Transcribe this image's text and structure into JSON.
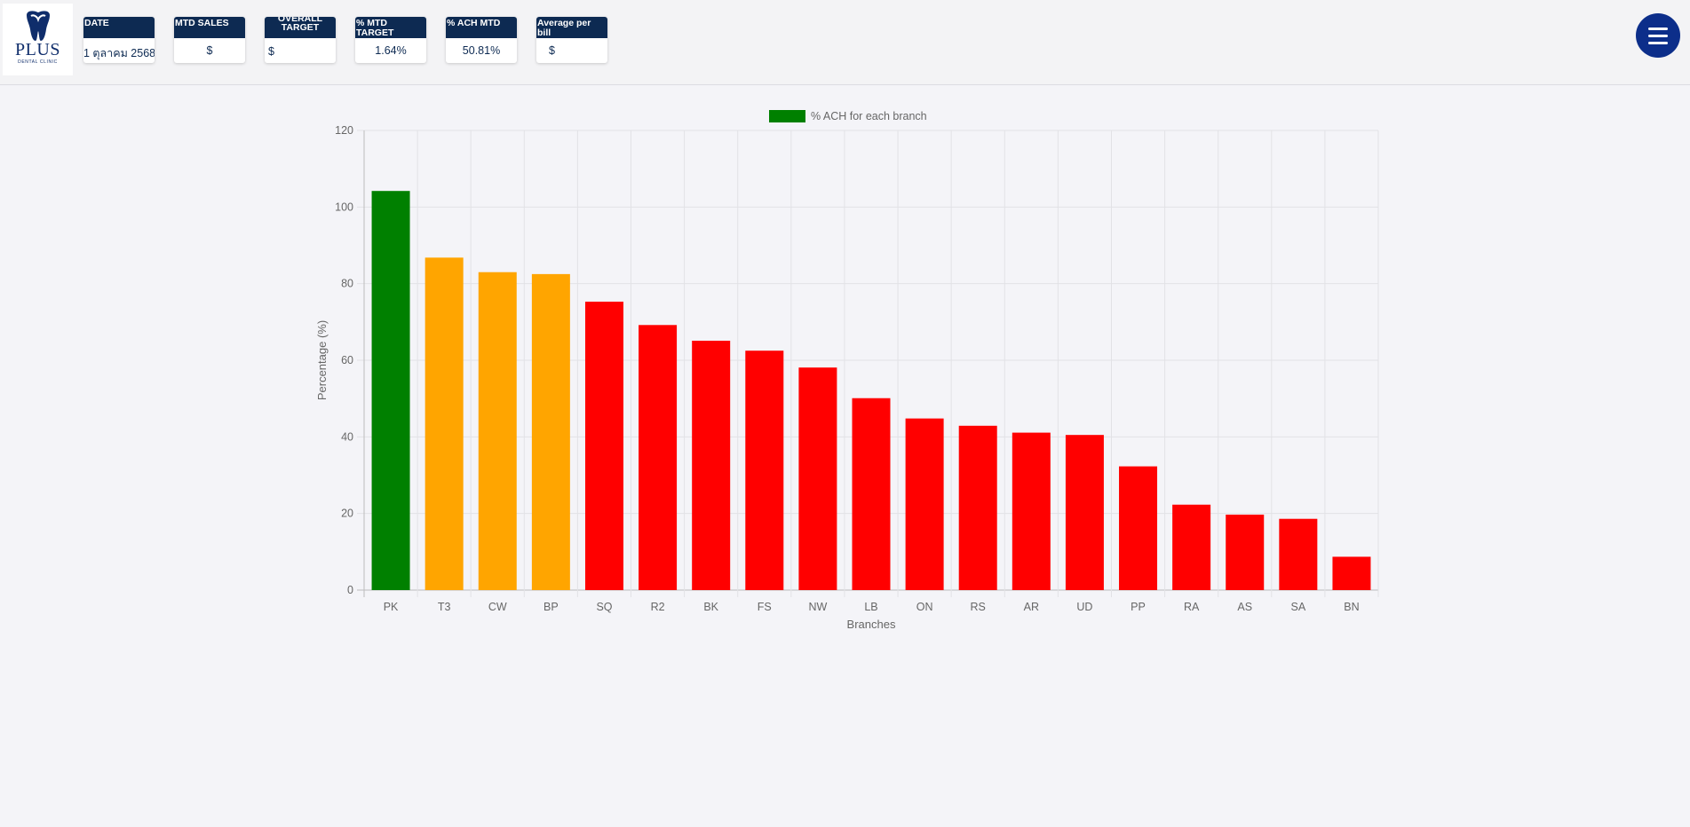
{
  "header": {
    "logo": {
      "word": "PLUS",
      "sub": "DENTAL CLINIC",
      "brand_color": "#0f2d6b"
    },
    "cards": [
      {
        "title": "DATE",
        "value": "1 ตุลาคม 2568"
      },
      {
        "title": "MTD SALES",
        "value": "$"
      },
      {
        "title": "OVERALL TARGET",
        "value": "$"
      },
      {
        "title": "% MTD TARGET",
        "value": "1.64%"
      },
      {
        "title": "% ACH MTD",
        "value": "50.81%"
      },
      {
        "title": "Average per bill",
        "value": "$"
      }
    ],
    "menu_icon": "hamburger-menu-icon"
  },
  "chart_data": {
    "type": "bar",
    "legend": {
      "label": "% ACH for each branch",
      "color": "#008000",
      "position": "top"
    },
    "categories": [
      "PK",
      "T3",
      "CW",
      "BP",
      "SQ",
      "R2",
      "BK",
      "FS",
      "NW",
      "LB",
      "ON",
      "RS",
      "AR",
      "UD",
      "PP",
      "RA",
      "AS",
      "SA",
      "BN"
    ],
    "values": [
      104.2,
      86.8,
      83.0,
      82.5,
      75.3,
      69.2,
      65.1,
      62.5,
      58.1,
      50.1,
      44.8,
      42.9,
      41.1,
      40.5,
      32.3,
      22.3,
      19.7,
      18.6,
      8.7
    ],
    "colors": [
      "#008000",
      "#ffa500",
      "#ffa500",
      "#ffa500",
      "#ff0000",
      "#ff0000",
      "#ff0000",
      "#ff0000",
      "#ff0000",
      "#ff0000",
      "#ff0000",
      "#ff0000",
      "#ff0000",
      "#ff0000",
      "#ff0000",
      "#ff0000",
      "#ff0000",
      "#ff0000",
      "#ff0000"
    ],
    "xlabel": "Branches",
    "ylabel": "Percentage (%)",
    "ylim": [
      0,
      120
    ],
    "yticks": [
      0,
      20,
      40,
      60,
      80,
      100,
      120
    ],
    "grid": true
  }
}
